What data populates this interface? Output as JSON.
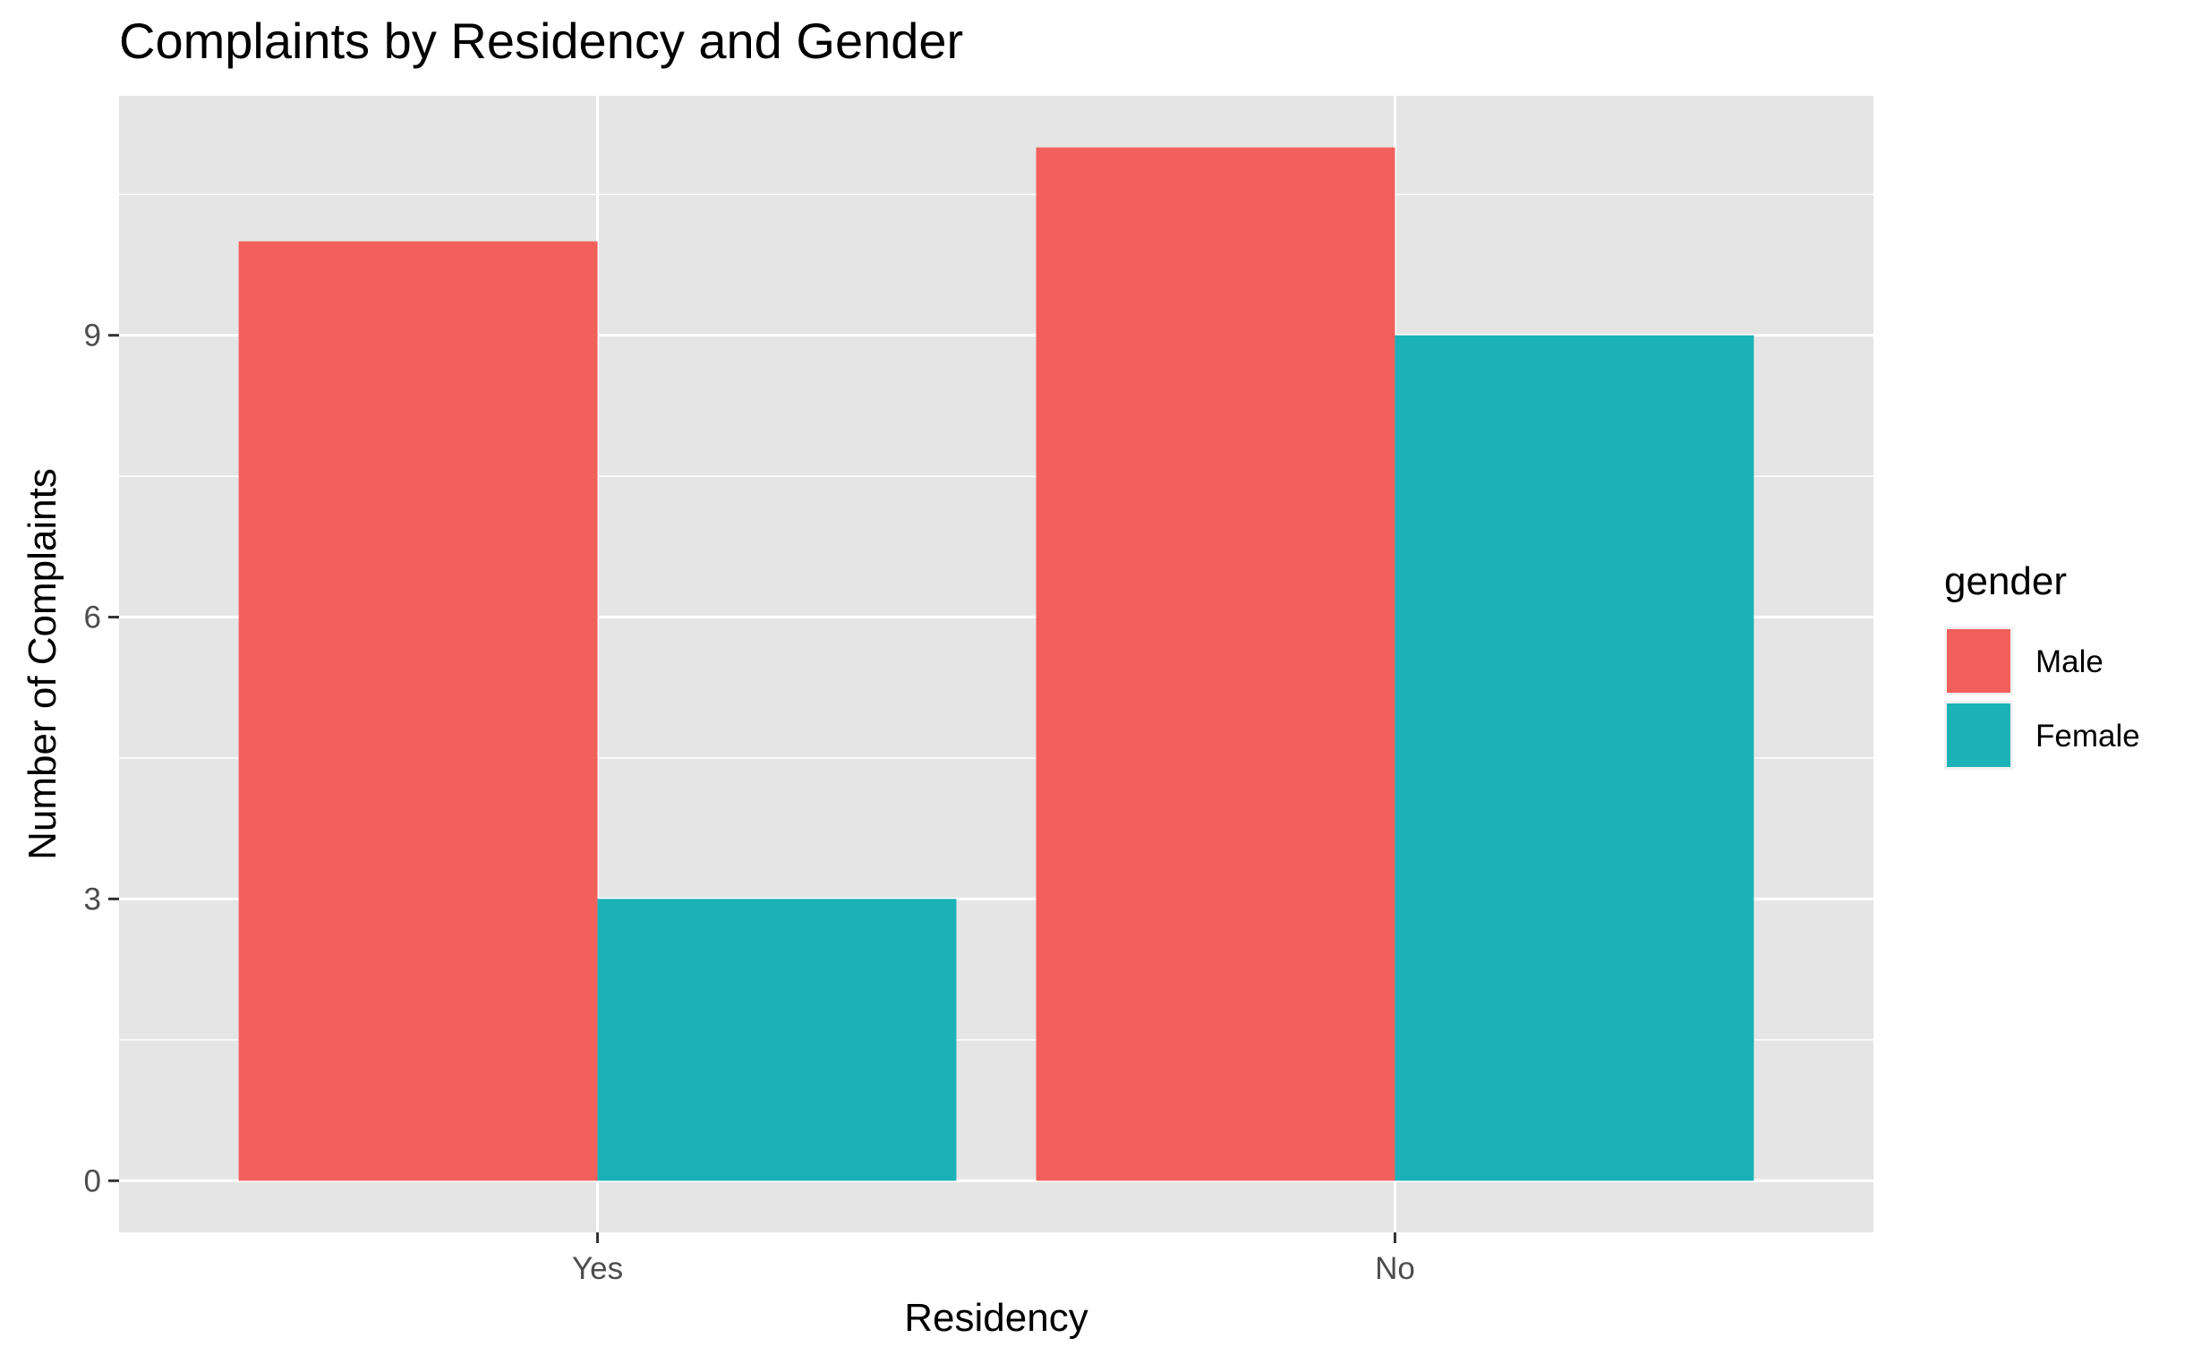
{
  "chart_data": {
    "type": "bar",
    "title": "Complaints by Residency and Gender",
    "xlabel": "Residency",
    "ylabel": "Number of Complaints",
    "categories": [
      "Yes",
      "No"
    ],
    "series": [
      {
        "name": "Male",
        "color": "#F2605C",
        "values": [
          10,
          11
        ]
      },
      {
        "name": "Female",
        "color": "#1AB2B7",
        "values": [
          3,
          9
        ]
      }
    ],
    "yticks": [
      0,
      3,
      6,
      9
    ],
    "ylim": [
      -0.55,
      11.55
    ],
    "grid": true,
    "legend": {
      "title": "gender",
      "position": "right"
    },
    "panel_background": "#E5E5E5"
  }
}
